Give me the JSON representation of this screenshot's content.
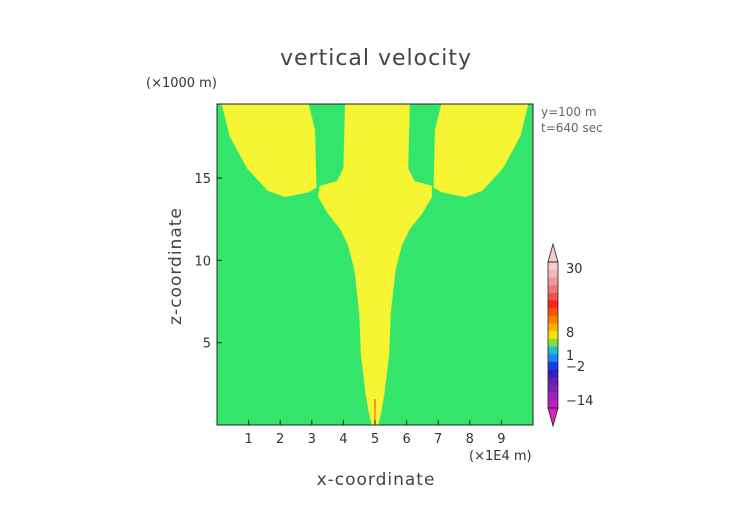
{
  "chart_data": {
    "type": "heatmap",
    "title": "vertical velocity",
    "xlabel": "x-coordinate",
    "ylabel": "z-coordinate",
    "x_unit": "(×1E4 m)",
    "z_unit": "(×1000 m)",
    "info": [
      "y=100 m",
      "t=640 sec"
    ],
    "xlim": [
      0,
      10
    ],
    "ylim": [
      0,
      19.5
    ],
    "x_ticks": [
      1,
      2,
      3,
      4,
      5,
      6,
      7,
      8,
      9
    ],
    "y_ticks": [
      5,
      10,
      15
    ],
    "colorbar": {
      "labels": [
        "30",
        "8",
        "1",
        "−2",
        "−14"
      ],
      "label_values": [
        30,
        8,
        1,
        -2,
        -14
      ],
      "top_arrow_color": "#f4cccc",
      "bottom_arrow_color": "#e020c0"
    },
    "background_color": "#33e66b",
    "feature_color": "#f5f533"
  }
}
